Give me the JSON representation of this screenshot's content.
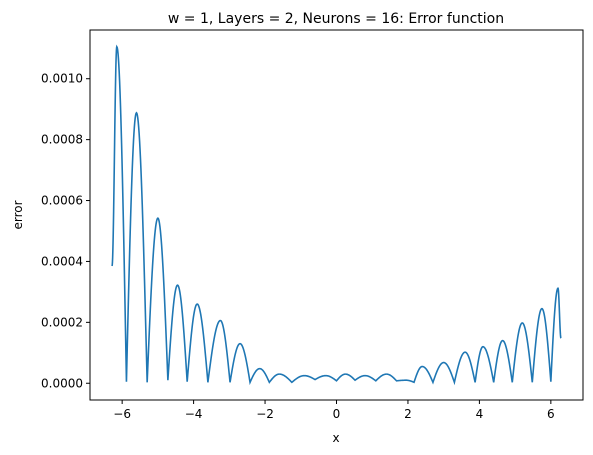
{
  "chart_data": {
    "type": "line",
    "title": "w = 1, Layers = 2, Neurons = 16: Error function",
    "xlabel": "x",
    "ylabel": "error",
    "xlim": [
      -6.9,
      6.9
    ],
    "ylim": [
      -5.5e-05,
      0.00116
    ],
    "x_ticks": [
      -6,
      -4,
      -2,
      0,
      2,
      4,
      6
    ],
    "x_tick_labels": [
      "−6",
      "−4",
      "−2",
      "0",
      "2",
      "4",
      "6"
    ],
    "y_ticks": [
      0.0,
      0.0002,
      0.0004,
      0.0006,
      0.0008,
      0.001
    ],
    "y_tick_labels": [
      "0.0000",
      "0.0002",
      "0.0004",
      "0.0006",
      "0.0008",
      "0.0010"
    ],
    "grid": false,
    "legend": "none",
    "series": [
      {
        "color": "#1f77b4",
        "peaks": [
          [
            -6.283,
            0.000385
          ],
          [
            -6.15,
            0.001105
          ],
          [
            -5.6,
            0.000888
          ],
          [
            -5.0,
            0.000542
          ],
          [
            -4.45,
            0.000322
          ],
          [
            -3.9,
            0.00026
          ],
          [
            -3.25,
            0.000206
          ],
          [
            -2.7,
            0.00013
          ],
          [
            -2.15,
            4.8e-05
          ],
          [
            -1.6,
            3e-05
          ],
          [
            -0.9,
            2.5e-05
          ],
          [
            -0.3,
            2.5e-05
          ],
          [
            0.25,
            3e-05
          ],
          [
            0.8,
            2.5e-05
          ],
          [
            1.4,
            3e-05
          ],
          [
            1.95,
            1e-05
          ],
          [
            2.4,
            5.5e-05
          ],
          [
            3.0,
            6.8e-05
          ],
          [
            3.6,
            0.000102
          ],
          [
            4.1,
            0.00012
          ],
          [
            4.65,
            0.00014
          ],
          [
            5.2,
            0.000198
          ],
          [
            5.75,
            0.000245
          ],
          [
            6.2,
            0.000312
          ],
          [
            6.283,
            0.000148
          ]
        ],
        "minima": [
          [
            -5.88,
            5e-06
          ],
          [
            -5.3,
            3e-06
          ],
          [
            -4.72,
            1e-05
          ],
          [
            -4.18,
            5e-06
          ],
          [
            -3.6,
            3e-06
          ],
          [
            -2.98,
            3e-06
          ],
          [
            -2.42,
            3e-06
          ],
          [
            -1.88,
            3e-06
          ],
          [
            -1.25,
            3e-06
          ],
          [
            -0.6,
            1.2e-05
          ],
          [
            0.0,
            8e-06
          ],
          [
            0.52,
            1e-05
          ],
          [
            1.1,
            8e-06
          ],
          [
            1.68,
            8e-06
          ],
          [
            2.17,
            3e-06
          ],
          [
            2.7,
            3e-06
          ],
          [
            3.3,
            3e-06
          ],
          [
            3.88,
            3e-06
          ],
          [
            4.4,
            3e-06
          ],
          [
            4.92,
            3e-06
          ],
          [
            5.48,
            3e-06
          ],
          [
            6.0,
            5e-06
          ]
        ]
      }
    ]
  }
}
